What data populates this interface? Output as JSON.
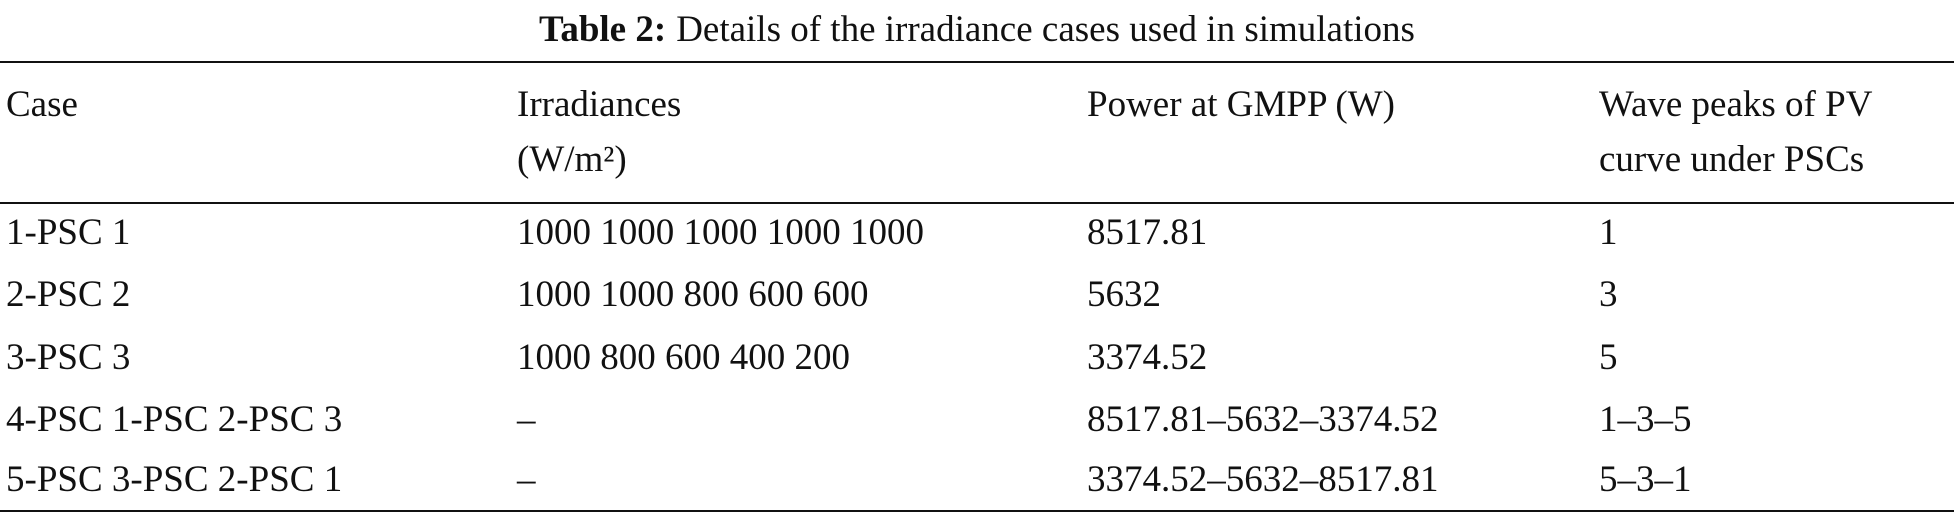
{
  "table": {
    "caption_label": "Table 2:",
    "caption": "Details of the irradiance cases used in simulations",
    "header": [
      [
        "Case"
      ],
      [
        "Irradiances",
        "(W/m²)"
      ],
      [
        "Power at GMPP (W)"
      ],
      [
        "Wave peaks of PV",
        "curve under PSCs"
      ]
    ],
    "rows": [
      [
        "1-PSC 1",
        "1000 1000 1000 1000 1000",
        "8517.81",
        "1"
      ],
      [
        "2-PSC 2",
        "1000 1000 800 600 600",
        "5632",
        "3"
      ],
      [
        "3-PSC 3",
        "1000 800 600 400 200",
        "3374.52",
        "5"
      ],
      [
        "4-PSC 1-PSC 2-PSC 3",
        "–",
        "8517.81–5632–3374.52",
        "1–3–5"
      ],
      [
        "5-PSC 3-PSC 2-PSC 1",
        "–",
        "3374.52–5632–8517.81",
        "5–3–1"
      ]
    ]
  }
}
